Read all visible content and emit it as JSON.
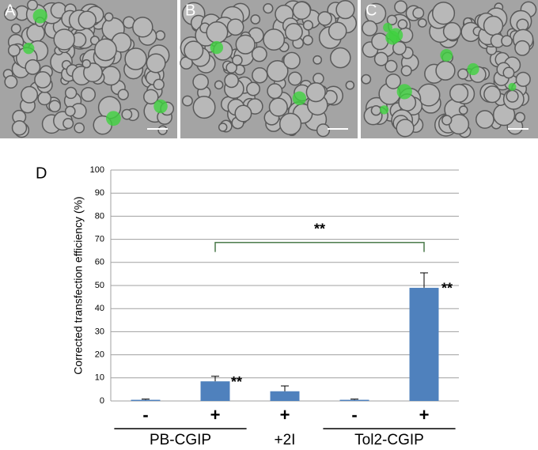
{
  "images": {
    "labels": [
      "A",
      "B",
      "C"
    ]
  },
  "chart_data": {
    "type": "bar",
    "panel_label": "D",
    "y_label": "Corrected transfection efficiency (%)",
    "categories": [
      "-",
      "+",
      "+",
      "-",
      "+"
    ],
    "groups": [
      "PB-CGIP",
      "+2I",
      "Tol2-CGIP"
    ],
    "values": [
      0.5,
      8.5,
      4.2,
      0.5,
      49
    ],
    "errors": [
      0.3,
      2.2,
      2.3,
      0.3,
      6.5
    ],
    "color": "#4f81bd",
    "annotations": [
      "**",
      "**",
      "**"
    ],
    "ylim": [
      0,
      100
    ],
    "yticks": [
      0,
      10,
      20,
      30,
      40,
      50,
      60,
      70,
      80,
      90,
      100
    ],
    "grid": true
  }
}
